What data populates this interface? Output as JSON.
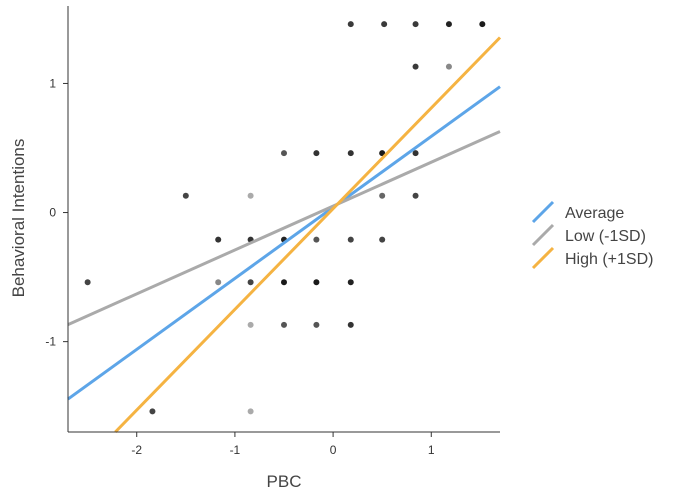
{
  "chart_data": {
    "type": "scatter",
    "title": "",
    "xlabel": "PBC",
    "ylabel": "Behavioral Intentions",
    "xlim": [
      -2.7,
      1.7
    ],
    "ylim": [
      -1.7,
      1.6
    ],
    "xticks": [
      -2,
      -1,
      0,
      1
    ],
    "yticks": [
      -1,
      0,
      1
    ],
    "xtick_labels": [
      "-2",
      "-1",
      "0",
      "1"
    ],
    "ytick_labels": [
      "-1",
      "0",
      "1"
    ],
    "grid": false,
    "legend_position": "right",
    "points": [
      {
        "x": 0.18,
        "y": 1.46,
        "c": "#3a3a3a"
      },
      {
        "x": 0.52,
        "y": 1.46,
        "c": "#3a3a3a"
      },
      {
        "x": 0.84,
        "y": 1.46,
        "c": "#3a3a3a"
      },
      {
        "x": 1.18,
        "y": 1.46,
        "c": "#222222"
      },
      {
        "x": 1.52,
        "y": 1.46,
        "c": "#1a1a1a"
      },
      {
        "x": 0.84,
        "y": 1.13,
        "c": "#3a3a3a"
      },
      {
        "x": 1.18,
        "y": 1.13,
        "c": "#888888"
      },
      {
        "x": -0.5,
        "y": 0.46,
        "c": "#555555"
      },
      {
        "x": -0.17,
        "y": 0.46,
        "c": "#333333"
      },
      {
        "x": 0.18,
        "y": 0.46,
        "c": "#333333"
      },
      {
        "x": 0.5,
        "y": 0.46,
        "c": "#1a1a1a"
      },
      {
        "x": 0.84,
        "y": 0.46,
        "c": "#333333"
      },
      {
        "x": -1.5,
        "y": 0.13,
        "c": "#444444"
      },
      {
        "x": -0.84,
        "y": 0.13,
        "c": "#aaaaaa"
      },
      {
        "x": 0.5,
        "y": 0.13,
        "c": "#666666"
      },
      {
        "x": 0.84,
        "y": 0.13,
        "c": "#444444"
      },
      {
        "x": -1.17,
        "y": -0.21,
        "c": "#333333"
      },
      {
        "x": -0.84,
        "y": -0.21,
        "c": "#333333"
      },
      {
        "x": -0.5,
        "y": -0.21,
        "c": "#222222"
      },
      {
        "x": -0.17,
        "y": -0.21,
        "c": "#555555"
      },
      {
        "x": 0.18,
        "y": -0.21,
        "c": "#444444"
      },
      {
        "x": 0.5,
        "y": -0.21,
        "c": "#444444"
      },
      {
        "x": -2.5,
        "y": -0.54,
        "c": "#444444"
      },
      {
        "x": -1.17,
        "y": -0.54,
        "c": "#888888"
      },
      {
        "x": -0.84,
        "y": -0.54,
        "c": "#444444"
      },
      {
        "x": -0.5,
        "y": -0.54,
        "c": "#1a1a1a"
      },
      {
        "x": -0.17,
        "y": -0.54,
        "c": "#1a1a1a"
      },
      {
        "x": 0.18,
        "y": -0.54,
        "c": "#222222"
      },
      {
        "x": -0.84,
        "y": -0.87,
        "c": "#aaaaaa"
      },
      {
        "x": -0.5,
        "y": -0.87,
        "c": "#555555"
      },
      {
        "x": -0.17,
        "y": -0.87,
        "c": "#555555"
      },
      {
        "x": 0.18,
        "y": -0.87,
        "c": "#333333"
      },
      {
        "x": -1.84,
        "y": -1.54,
        "c": "#444444"
      },
      {
        "x": -0.84,
        "y": -1.54,
        "c": "#aaaaaa"
      }
    ],
    "series": [
      {
        "name": "Average",
        "color": "#5da5e8",
        "intercept": 0.04,
        "slope": 0.55
      },
      {
        "name": "Low (-1SD)",
        "color": "#aaaaaa",
        "intercept": 0.05,
        "slope": 0.34
      },
      {
        "name": "High (+1SD)",
        "color": "#f5b342",
        "intercept": 0.03,
        "slope": 0.78
      }
    ]
  }
}
